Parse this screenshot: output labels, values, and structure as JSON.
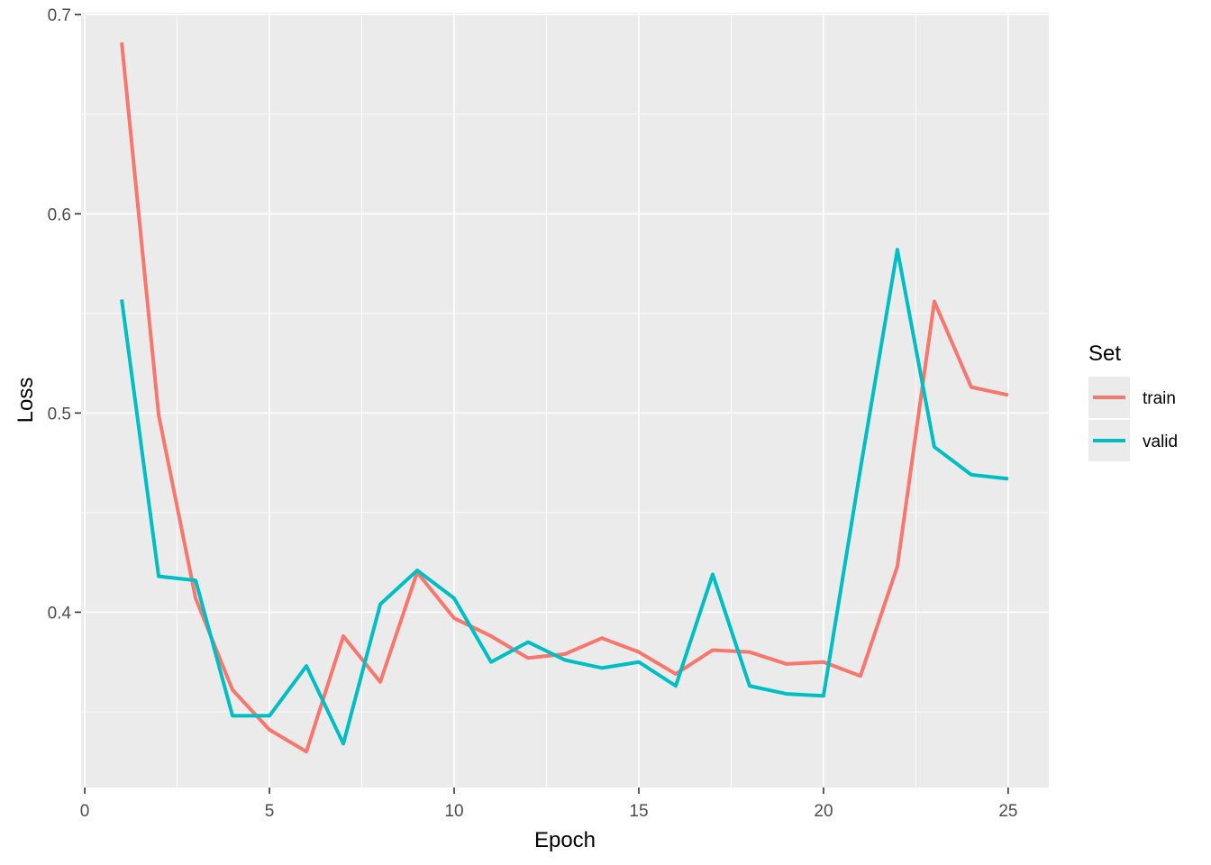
{
  "chart_data": {
    "type": "line",
    "xlabel": "Epoch",
    "ylabel": "Loss",
    "xlim": [
      -0.1,
      26.1
    ],
    "ylim": [
      0.312,
      0.701
    ],
    "x_ticks": [
      0,
      5,
      10,
      15,
      20,
      25
    ],
    "y_ticks": [
      0.4,
      0.5,
      0.6,
      0.7
    ],
    "x_tick_labels": [
      "0",
      "5",
      "10",
      "15",
      "20",
      "25"
    ],
    "y_tick_labels": [
      "0.4",
      "0.5",
      "0.6",
      "0.7"
    ],
    "grid": true,
    "legend": {
      "title": "Set",
      "position": "right"
    },
    "x": [
      1,
      2,
      3,
      4,
      5,
      6,
      7,
      8,
      9,
      10,
      11,
      12,
      13,
      14,
      15,
      16,
      17,
      18,
      19,
      20,
      21,
      22,
      23,
      24,
      25
    ],
    "series": [
      {
        "name": "train",
        "color": "#F8766D",
        "values": [
          0.686,
          0.499,
          0.407,
          0.361,
          0.341,
          0.33,
          0.388,
          0.365,
          0.42,
          0.397,
          0.388,
          0.377,
          0.379,
          0.387,
          0.38,
          0.369,
          0.381,
          0.38,
          0.374,
          0.375,
          0.368,
          0.423,
          0.556,
          0.513,
          0.509
        ]
      },
      {
        "name": "valid",
        "color": "#00BFC4",
        "values": [
          0.557,
          0.418,
          0.416,
          0.348,
          0.348,
          0.373,
          0.334,
          0.404,
          0.421,
          0.407,
          0.375,
          0.385,
          0.376,
          0.372,
          0.375,
          0.363,
          0.419,
          0.363,
          0.359,
          0.358,
          0.472,
          0.582,
          0.483,
          0.469,
          0.467
        ]
      }
    ]
  }
}
